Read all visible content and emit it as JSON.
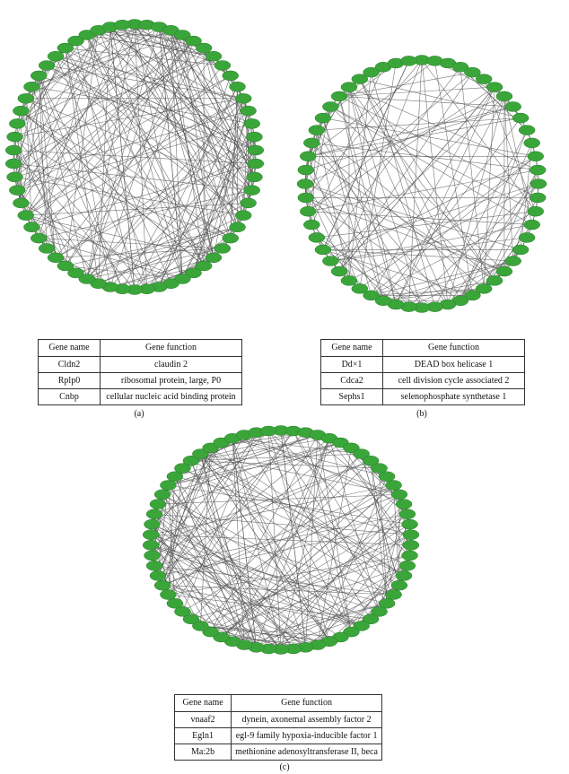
{
  "panels": [
    {
      "id": "a",
      "caption": "(a)",
      "header": {
        "name": "Gene name",
        "function": "Gene function"
      },
      "rows": [
        {
          "name": "Cldn2",
          "function": "claudin 2"
        },
        {
          "name": "Rplp0",
          "function": "ribosomal protein, large, P0"
        },
        {
          "name": "Cnbp",
          "function": "cellular nucleic acid binding protein"
        }
      ]
    },
    {
      "id": "b",
      "caption": "(b)",
      "header": {
        "name": "Gene name",
        "function": "Gene function"
      },
      "rows": [
        {
          "name": "Dd×1",
          "function": "DEAD box helicase 1"
        },
        {
          "name": "Cdca2",
          "function": "cell division cycle associated 2"
        },
        {
          "name": "Sephs1",
          "function": "selenophosphate synthetase 1"
        }
      ]
    },
    {
      "id": "c",
      "caption": "(c)",
      "header": {
        "name": "Gene name",
        "function": "Gene function"
      },
      "rows": [
        {
          "name": "vnaaf2",
          "function": "dynein, axonemal assembly factor 2"
        },
        {
          "name": "Egln1",
          "function": "egl-9 family hypoxia-inducible factor 1"
        },
        {
          "name": "Ma:2b",
          "function": "methionine adenosyltransferase II, beca"
        }
      ]
    }
  ],
  "node_color": "#3aa63a",
  "edge_color": "#555555"
}
